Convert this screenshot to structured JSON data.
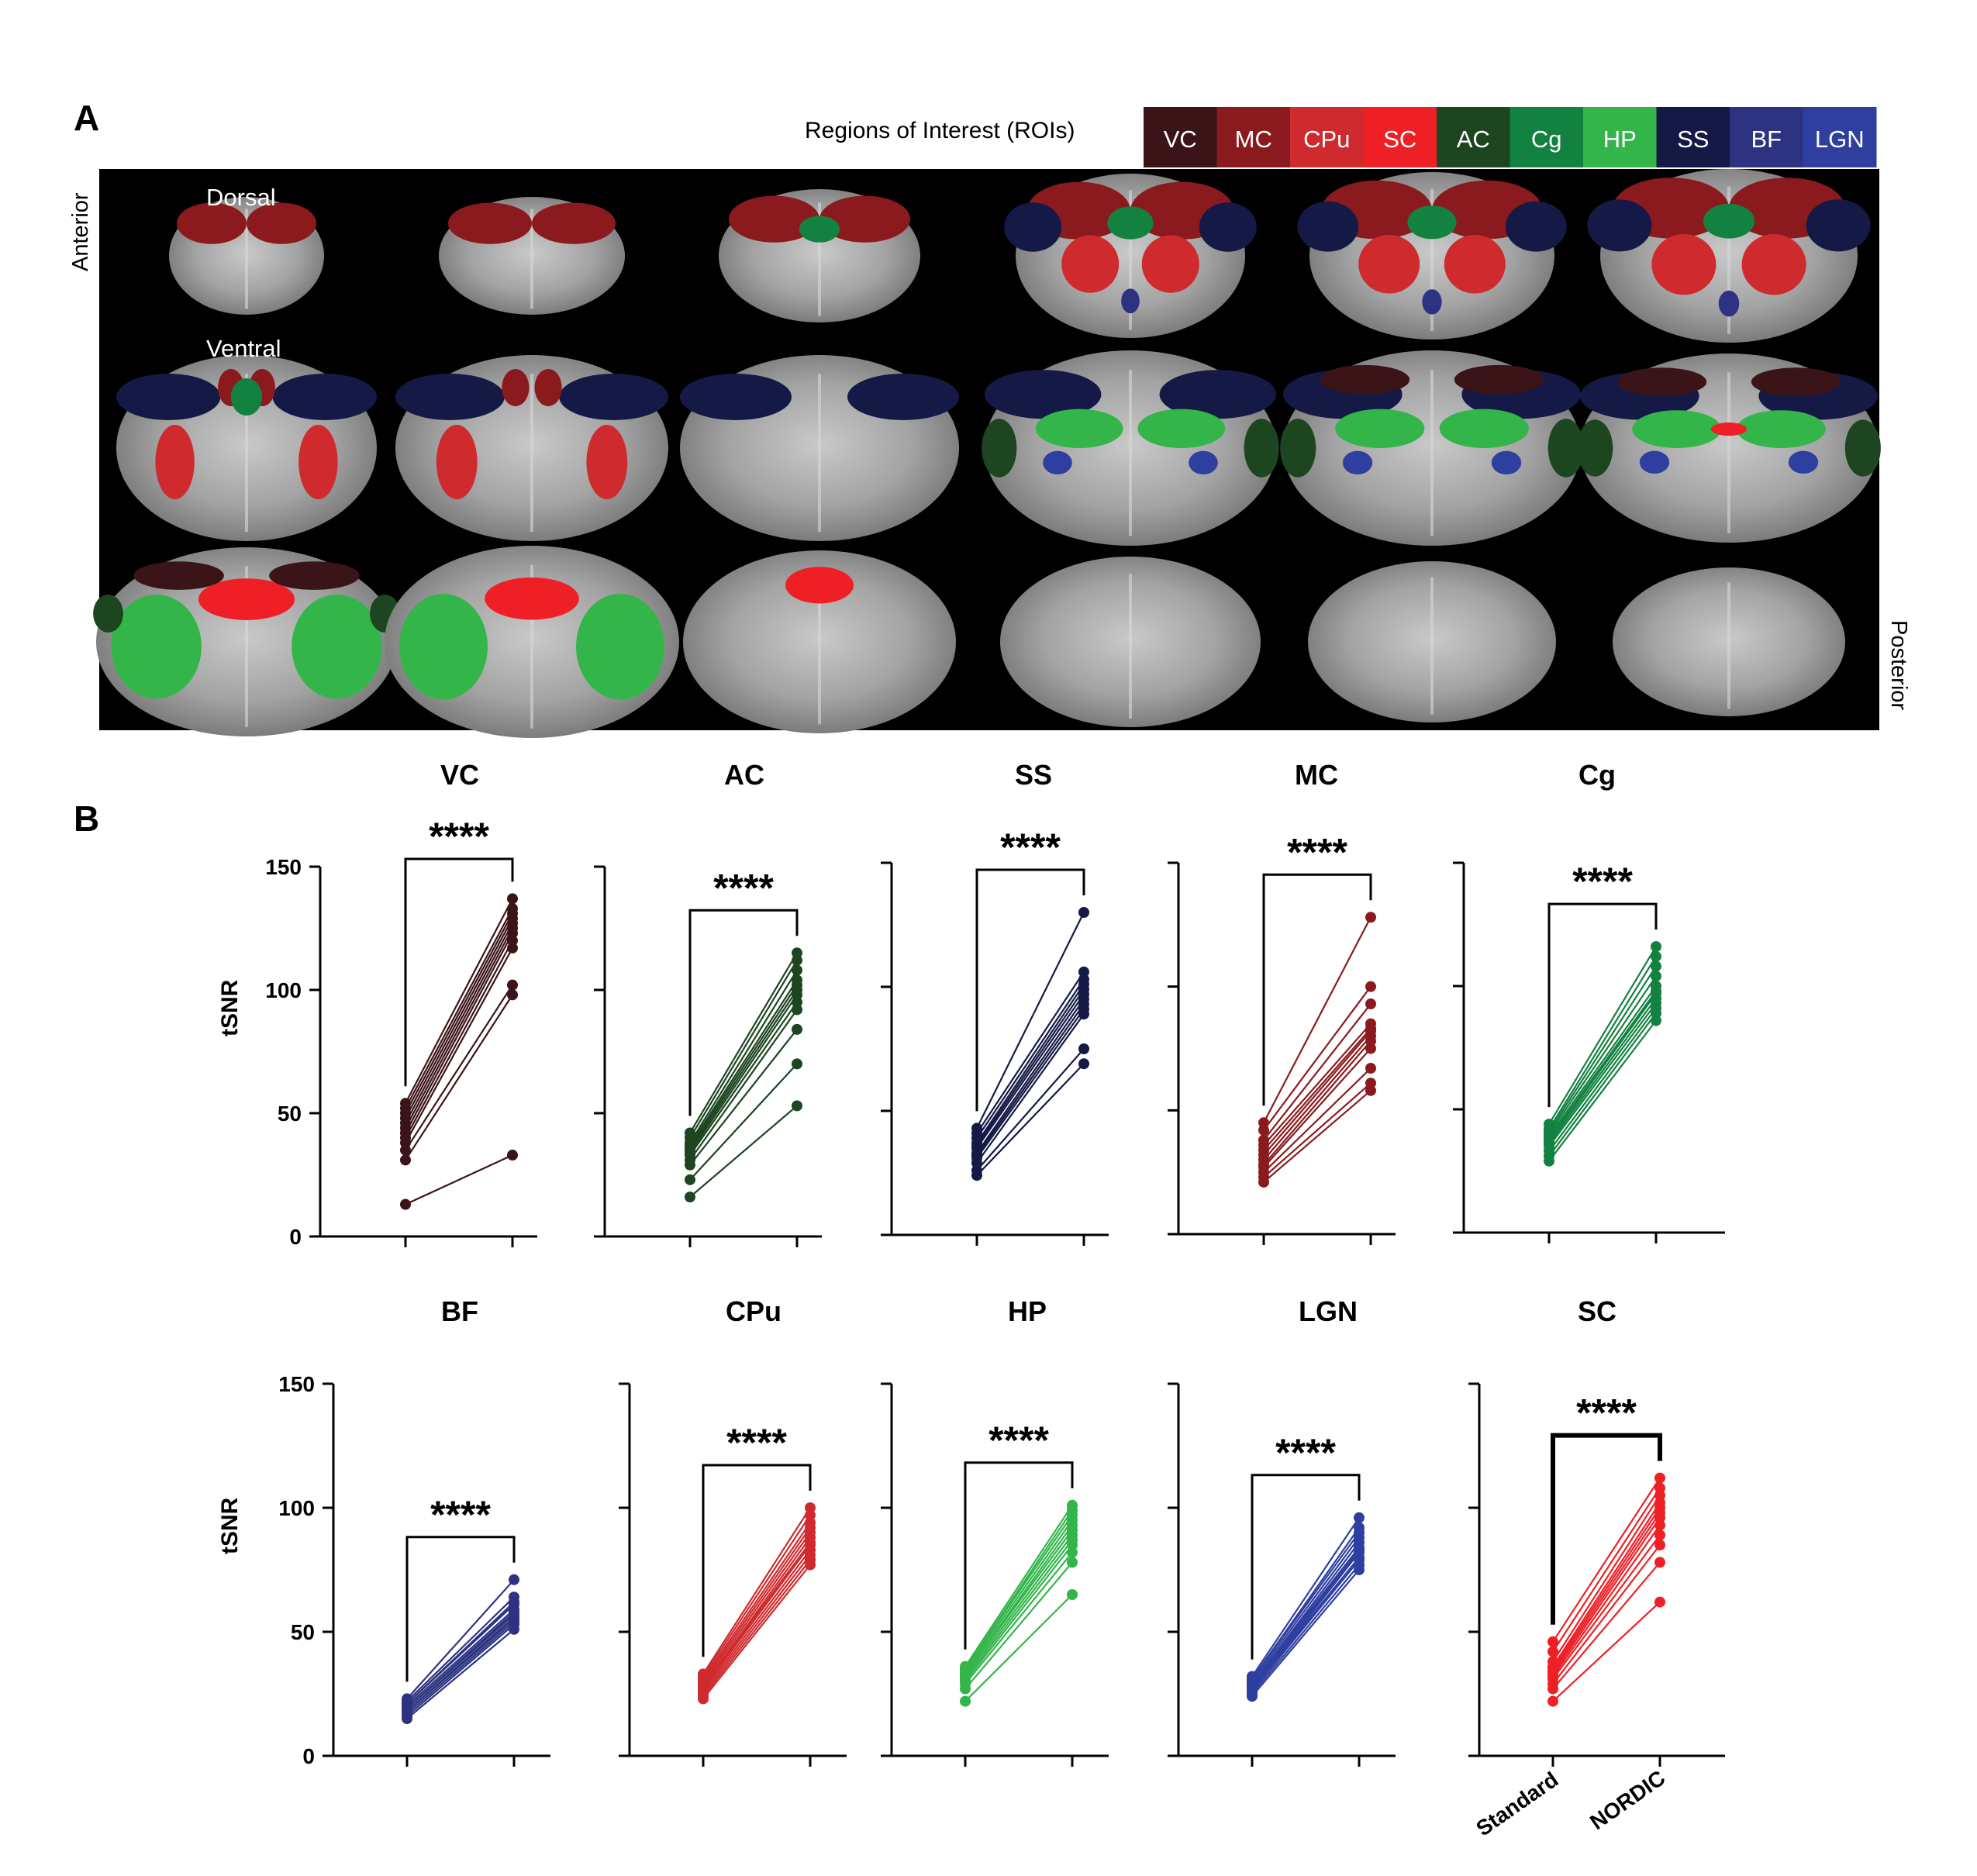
{
  "panel_a": {
    "label": "A",
    "legend_title": "Regions of Interest (ROIs)",
    "legend": [
      {
        "name": "VC",
        "color": "#3b1418"
      },
      {
        "name": "MC",
        "color": "#8b1a1e"
      },
      {
        "name": "CPu",
        "color": "#cf2a2e"
      },
      {
        "name": "SC",
        "color": "#ee2026"
      },
      {
        "name": "AC",
        "color": "#1c4520"
      },
      {
        "name": "Cg",
        "color": "#138140"
      },
      {
        "name": "HP",
        "color": "#33b54a"
      },
      {
        "name": "SS",
        "color": "#141a45"
      },
      {
        "name": "BF",
        "color": "#2d3380"
      },
      {
        "name": "LGN",
        "color": "#2e3fa0"
      }
    ],
    "anterior": "Anterior",
    "posterior": "Posterior",
    "dorsal": "Dorsal",
    "ventral": "Ventral"
  },
  "panel_b": {
    "label": "B",
    "y_axis_label": "tSNR",
    "x_categories": [
      "Standard",
      "NORDIC"
    ]
  },
  "chart_data": [
    {
      "type": "line",
      "title": "VC",
      "color": "#3b1418",
      "ylim": [
        0,
        150
      ],
      "yticks": [
        0,
        50,
        100,
        150
      ],
      "categories": [
        "Standard",
        "NORDIC"
      ],
      "significance": "****",
      "series": {
        "standard": [
          13,
          31,
          35,
          38,
          40,
          42,
          44,
          46,
          48,
          50,
          52,
          54
        ],
        "nordic": [
          33,
          98,
          102,
          117,
          120,
          123,
          125,
          127,
          129,
          131,
          133,
          137
        ]
      }
    },
    {
      "type": "line",
      "title": "AC",
      "color": "#1c4520",
      "ylim": [
        0,
        150
      ],
      "yticks": [
        0,
        50,
        100,
        150
      ],
      "categories": [
        "Standard",
        "NORDIC"
      ],
      "significance": "****",
      "series": {
        "standard": [
          16,
          23,
          29,
          31,
          33,
          34,
          35,
          36,
          37,
          38,
          40,
          42
        ],
        "nordic": [
          53,
          70,
          84,
          92,
          95,
          98,
          100,
          102,
          104,
          108,
          112,
          115
        ]
      }
    },
    {
      "type": "line",
      "title": "SS",
      "color": "#141a45",
      "ylim": [
        0,
        150
      ],
      "yticks": [
        0,
        50,
        100,
        150
      ],
      "categories": [
        "Standard",
        "NORDIC"
      ],
      "significance": "****",
      "series": {
        "standard": [
          24,
          26,
          29,
          31,
          32,
          33,
          35,
          36,
          37,
          39,
          41,
          43
        ],
        "nordic": [
          69,
          75,
          89,
          91,
          93,
          95,
          97,
          99,
          101,
          103,
          106,
          130
        ]
      }
    },
    {
      "type": "line",
      "title": "MC",
      "color": "#8b1a1e",
      "ylim": [
        0,
        150
      ],
      "yticks": [
        0,
        50,
        100,
        150
      ],
      "categories": [
        "Standard",
        "NORDIC"
      ],
      "significance": "****",
      "series": {
        "standard": [
          21,
          23,
          25,
          27,
          28,
          30,
          32,
          34,
          36,
          38,
          42,
          45
        ],
        "nordic": [
          58,
          61,
          67,
          75,
          78,
          80,
          82,
          83,
          85,
          93,
          100,
          128
        ]
      }
    },
    {
      "type": "line",
      "title": "Cg",
      "color": "#138140",
      "ylim": [
        0,
        150
      ],
      "yticks": [
        0,
        50,
        100,
        150
      ],
      "categories": [
        "Standard",
        "NORDIC"
      ],
      "significance": "****",
      "series": {
        "standard": [
          29,
          31,
          33,
          35,
          36,
          37,
          38,
          39,
          40,
          41,
          42,
          44
        ],
        "nordic": [
          86,
          89,
          91,
          93,
          95,
          97,
          98,
          100,
          104,
          108,
          112,
          116
        ]
      }
    },
    {
      "type": "line",
      "title": "BF",
      "color": "#2d3380",
      "ylim": [
        0,
        150
      ],
      "yticks": [
        0,
        50,
        100,
        150
      ],
      "categories": [
        "Standard",
        "NORDIC"
      ],
      "significance": "****",
      "series": {
        "standard": [
          15,
          16,
          17,
          18,
          18,
          19,
          19,
          20,
          21,
          21,
          22,
          23
        ],
        "nordic": [
          51,
          53,
          54,
          55,
          56,
          57,
          58,
          59,
          61,
          62,
          64,
          71
        ]
      }
    },
    {
      "type": "line",
      "title": "CPu",
      "color": "#cf2a2e",
      "ylim": [
        0,
        150
      ],
      "yticks": [
        0,
        50,
        100,
        150
      ],
      "categories": [
        "Standard",
        "NORDIC"
      ],
      "significance": "****",
      "series": {
        "standard": [
          23,
          24,
          25,
          26,
          27,
          28,
          28,
          29,
          30,
          31,
          32,
          33
        ],
        "nordic": [
          77,
          79,
          81,
          83,
          85,
          86,
          88,
          90,
          92,
          94,
          97,
          100
        ]
      }
    },
    {
      "type": "line",
      "title": "HP",
      "color": "#33b54a",
      "ylim": [
        0,
        150
      ],
      "yticks": [
        0,
        50,
        100,
        150
      ],
      "categories": [
        "Standard",
        "NORDIC"
      ],
      "significance": "****",
      "series": {
        "standard": [
          22,
          27,
          29,
          30,
          31,
          32,
          33,
          33,
          34,
          35,
          35,
          36
        ],
        "nordic": [
          65,
          78,
          82,
          85,
          87,
          89,
          91,
          93,
          95,
          97,
          99,
          101
        ]
      }
    },
    {
      "type": "line",
      "title": "LGN",
      "color": "#2e3fa0",
      "ylim": [
        0,
        150
      ],
      "yticks": [
        0,
        50,
        100,
        150
      ],
      "categories": [
        "Standard",
        "NORDIC"
      ],
      "significance": "****",
      "series": {
        "standard": [
          24,
          25,
          26,
          27,
          27,
          28,
          29,
          29,
          30,
          31,
          31,
          32
        ],
        "nordic": [
          75,
          77,
          79,
          80,
          82,
          83,
          84,
          86,
          88,
          90,
          92,
          96
        ]
      }
    },
    {
      "type": "line",
      "title": "SC",
      "color": "#ee2026",
      "ylim": [
        0,
        150
      ],
      "yticks": [
        0,
        50,
        100,
        150
      ],
      "categories": [
        "Standard",
        "NORDIC"
      ],
      "significance": "****",
      "series": {
        "standard": [
          22,
          27,
          29,
          31,
          32,
          33,
          34,
          35,
          36,
          38,
          42,
          46
        ],
        "nordic": [
          62,
          78,
          85,
          89,
          93,
          96,
          98,
          100,
          102,
          105,
          108,
          112
        ]
      }
    }
  ]
}
